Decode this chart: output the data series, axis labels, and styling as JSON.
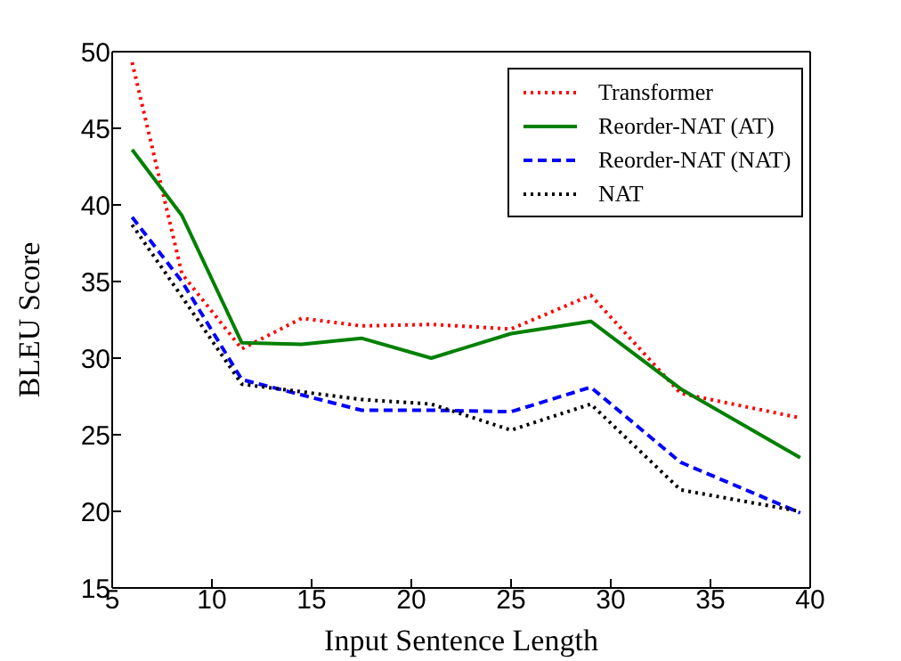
{
  "chart_data": {
    "type": "line",
    "xlabel": "Input Sentence Length",
    "ylabel": "BLEU Score",
    "x": [
      6,
      8.5,
      11.5,
      14.5,
      17.5,
      21,
      25,
      29,
      33.5,
      39.5
    ],
    "series": [
      {
        "name": "Transformer",
        "color": "#ff0000",
        "line_style": "dotted",
        "values": [
          49.3,
          35.5,
          30.6,
          32.6,
          32.1,
          32.2,
          31.9,
          34.1,
          27.7,
          26.1
        ]
      },
      {
        "name": "Reorder-NAT (AT)",
        "color": "#008000",
        "line_style": "solid",
        "values": [
          43.6,
          39.3,
          31.0,
          30.9,
          31.3,
          30.0,
          31.6,
          32.4,
          28.0,
          23.5
        ]
      },
      {
        "name": "Reorder-NAT (NAT)",
        "color": "#0000ff",
        "line_style": "dashed",
        "values": [
          39.2,
          35.0,
          28.6,
          27.6,
          26.6,
          26.6,
          26.5,
          28.1,
          23.2,
          19.9
        ]
      },
      {
        "name": "NAT",
        "color": "#000000",
        "line_style": "dotted",
        "values": [
          38.7,
          34.0,
          28.3,
          27.8,
          27.3,
          27.0,
          25.3,
          27.0,
          21.4,
          20.0
        ]
      }
    ],
    "xlim": [
      5,
      40
    ],
    "xticks": [
      5,
      10,
      15,
      20,
      25,
      30,
      35,
      40
    ],
    "ylim": [
      15,
      50
    ],
    "yticks": [
      15,
      20,
      25,
      30,
      35,
      40,
      45,
      50
    ],
    "grid": false,
    "legend": "top right",
    "marker": "none"
  }
}
